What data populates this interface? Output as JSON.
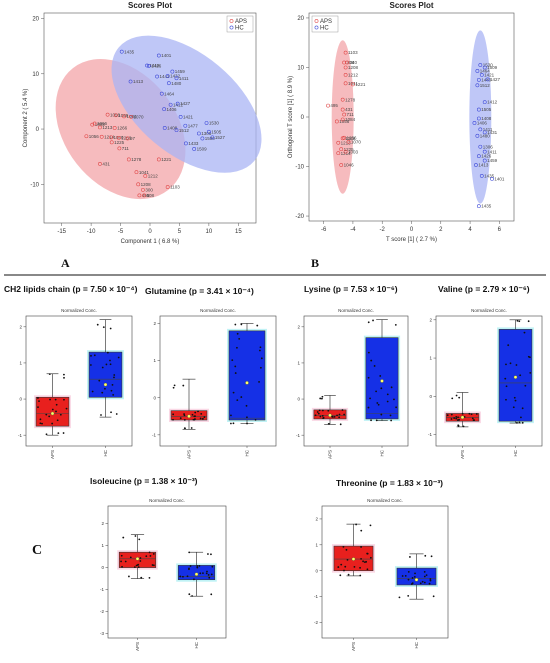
{
  "chart_data": [
    {
      "type": "scatter",
      "panel": "A",
      "title": "Scores Plot",
      "xlabel": "Component 1 ( 6.8 %)",
      "ylabel": "Component 2 ( 5.4 %)",
      "xlim": [
        -18,
        18
      ],
      "ylim": [
        -17,
        21
      ],
      "xticks": [
        -15,
        -10,
        -5,
        0,
        5,
        10,
        15
      ],
      "yticks": [
        -10,
        0,
        10,
        20
      ],
      "legend": {
        "position": "top-right",
        "entries": [
          "APS",
          "HC"
        ]
      },
      "colors": {
        "APS": "#e04848",
        "HC": "#3f4bd8",
        "APS_fill": "#f3a4a8",
        "HC_fill": "#aab4f4"
      },
      "ellipses": [
        {
          "group": "APS",
          "cx": -5,
          "cy": 0,
          "rx": 9.5,
          "ry": 14,
          "angle": 38
        },
        {
          "group": "HC",
          "cx": 6.2,
          "cy": 4.5,
          "rx": 8.5,
          "ry": 16,
          "angle": 50
        }
      ],
      "series": [
        {
          "name": "APS",
          "points": [
            {
              "x": -7.2,
              "y": 2.6,
              "label": "1056"
            },
            {
              "x": -5.8,
              "y": 2.5,
              "label": "1089"
            },
            {
              "x": -4.4,
              "y": 2.3,
              "label": "1084"
            },
            {
              "x": -3.2,
              "y": 2.2,
              "label": "1070"
            },
            {
              "x": -9.8,
              "y": 0.8,
              "label": "1003"
            },
            {
              "x": -9.4,
              "y": 1.0,
              "label": "1066"
            },
            {
              "x": -8.5,
              "y": 0.3,
              "label": "1213"
            },
            {
              "x": -6.0,
              "y": 0.2,
              "label": "1266"
            },
            {
              "x": -10.8,
              "y": -1.3,
              "label": "1056"
            },
            {
              "x": -8.2,
              "y": -1.4,
              "label": "1214"
            },
            {
              "x": -6.6,
              "y": -1.5,
              "label": "1040"
            },
            {
              "x": -5.3,
              "y": -1.6,
              "label": "1256"
            },
            {
              "x": -3.8,
              "y": -1.7,
              "label": "97"
            },
            {
              "x": -6.5,
              "y": -2.4,
              "label": "1225"
            },
            {
              "x": -5.2,
              "y": -3.5,
              "label": "711"
            },
            {
              "x": -3.6,
              "y": -5.5,
              "label": "1278"
            },
            {
              "x": -8.5,
              "y": -6.3,
              "label": "431"
            },
            {
              "x": 1.5,
              "y": -5.5,
              "label": "1221"
            },
            {
              "x": -2.3,
              "y": -7.8,
              "label": "1041"
            },
            {
              "x": -0.8,
              "y": -8.5,
              "label": "1212"
            },
            {
              "x": -2.0,
              "y": -10.0,
              "label": "1208"
            },
            {
              "x": -1.2,
              "y": -11.0,
              "label": "300"
            },
            {
              "x": -1.8,
              "y": -12.0,
              "label": "495"
            },
            {
              "x": -1.0,
              "y": -12.0,
              "label": "408"
            },
            {
              "x": 3.0,
              "y": -10.5,
              "label": "1103"
            }
          ]
        },
        {
          "name": "HC",
          "points": [
            {
              "x": -4.8,
              "y": 14.0,
              "label": "1435"
            },
            {
              "x": 1.5,
              "y": 13.3,
              "label": "1401"
            },
            {
              "x": -0.5,
              "y": 11.5,
              "label": "1418"
            },
            {
              "x": -0.2,
              "y": 11.4,
              "label": "1426"
            },
            {
              "x": 3.8,
              "y": 10.4,
              "label": "1459"
            },
            {
              "x": 1.2,
              "y": 9.5,
              "label": "1442"
            },
            {
              "x": 3.0,
              "y": 9.6,
              "label": "1432"
            },
            {
              "x": 4.5,
              "y": 9.2,
              "label": "1411"
            },
            {
              "x": -3.3,
              "y": 8.6,
              "label": "1413"
            },
            {
              "x": 3.2,
              "y": 8.3,
              "label": "1480"
            },
            {
              "x": 2.0,
              "y": 6.4,
              "label": "1464"
            },
            {
              "x": 3.5,
              "y": 4.4,
              "label": "1412"
            },
            {
              "x": 4.7,
              "y": 4.6,
              "label": "1427"
            },
            {
              "x": 2.4,
              "y": 3.6,
              "label": "1406"
            },
            {
              "x": 5.2,
              "y": 2.2,
              "label": "1421"
            },
            {
              "x": 6.0,
              "y": 0.6,
              "label": "1477"
            },
            {
              "x": 2.5,
              "y": 0.2,
              "label": "1408"
            },
            {
              "x": 4.5,
              "y": -0.2,
              "label": "1512"
            },
            {
              "x": 9.6,
              "y": 1.1,
              "label": "1530"
            },
            {
              "x": 8.3,
              "y": -0.8,
              "label": "1306"
            },
            {
              "x": 10.0,
              "y": -0.5,
              "label": "1505"
            },
            {
              "x": 8.9,
              "y": -1.7,
              "label": "1500"
            },
            {
              "x": 10.6,
              "y": -1.5,
              "label": "1527"
            },
            {
              "x": 6.1,
              "y": -2.6,
              "label": "1433"
            },
            {
              "x": 7.5,
              "y": -3.6,
              "label": "1509"
            }
          ]
        }
      ]
    },
    {
      "type": "scatter",
      "panel": "B",
      "title": "Scores Plot",
      "xlabel": "T score [1] ( 2.7 %)",
      "ylabel": "Orthogonal T score [1] ( 8.9 %)",
      "xlim": [
        -7,
        7
      ],
      "ylim": [
        -21,
        21
      ],
      "xticks": [
        -6,
        -4,
        -2,
        0,
        2,
        4,
        6
      ],
      "yticks": [
        -20,
        -10,
        0,
        10,
        20
      ],
      "legend": {
        "position": "top-left",
        "entries": [
          "APS",
          "HC"
        ]
      },
      "colors": {
        "APS": "#e04848",
        "HC": "#3f4bd8",
        "APS_fill": "#f3a4a8",
        "HC_fill": "#aab4f4"
      },
      "ellipses": [
        {
          "group": "APS",
          "cx": -4.7,
          "cy": 0,
          "rx": 0.75,
          "ry": 15.5,
          "angle": 0
        },
        {
          "group": "HC",
          "cx": 4.7,
          "cy": 0,
          "rx": 0.75,
          "ry": 17.5,
          "angle": 0
        }
      ],
      "series": [
        {
          "name": "APS",
          "points": [
            {
              "x": -4.5,
              "y": 13.0,
              "label": "1103"
            },
            {
              "x": -4.6,
              "y": 11.0,
              "label": "308"
            },
            {
              "x": -4.4,
              "y": 11.0,
              "label": "340"
            },
            {
              "x": -4.5,
              "y": 10.0,
              "label": "1208"
            },
            {
              "x": -4.5,
              "y": 8.5,
              "label": "1212"
            },
            {
              "x": -4.5,
              "y": 6.8,
              "label": "1041"
            },
            {
              "x": -4.0,
              "y": 6.6,
              "label": "1221"
            },
            {
              "x": -4.7,
              "y": 3.5,
              "label": "1278"
            },
            {
              "x": -5.7,
              "y": 2.3,
              "label": "495"
            },
            {
              "x": -4.7,
              "y": 1.5,
              "label": "431"
            },
            {
              "x": -4.6,
              "y": 0.5,
              "label": "711"
            },
            {
              "x": -5.1,
              "y": -0.9,
              "label": "1056"
            },
            {
              "x": -4.7,
              "y": -0.5,
              "label": "1084"
            },
            {
              "x": -4.6,
              "y": -4.2,
              "label": "1256"
            },
            {
              "x": -4.7,
              "y": -4.3,
              "label": "1089"
            },
            {
              "x": -5.0,
              "y": -5.2,
              "label": "1213"
            },
            {
              "x": -4.3,
              "y": -5.0,
              "label": "1070"
            },
            {
              "x": -4.8,
              "y": -6.5,
              "label": "1225"
            },
            {
              "x": -5.0,
              "y": -7.3,
              "label": "1214"
            },
            {
              "x": -4.5,
              "y": -7.0,
              "label": "1003"
            },
            {
              "x": -4.8,
              "y": -9.7,
              "label": "1046"
            }
          ]
        },
        {
          "name": "HC",
          "points": [
            {
              "x": 4.7,
              "y": 10.5,
              "label": "1530"
            },
            {
              "x": 5.0,
              "y": 10.0,
              "label": "1509"
            },
            {
              "x": 4.5,
              "y": 9.3,
              "label": "1464"
            },
            {
              "x": 4.8,
              "y": 8.5,
              "label": "1421"
            },
            {
              "x": 4.6,
              "y": 7.5,
              "label": "1440"
            },
            {
              "x": 5.2,
              "y": 7.6,
              "label": "1427"
            },
            {
              "x": 4.5,
              "y": 6.4,
              "label": "1512"
            },
            {
              "x": 5.0,
              "y": 3.0,
              "label": "1412"
            },
            {
              "x": 4.6,
              "y": 1.5,
              "label": "1505"
            },
            {
              "x": 4.6,
              "y": -0.3,
              "label": "1408"
            },
            {
              "x": 4.3,
              "y": -1.2,
              "label": "1406"
            },
            {
              "x": 4.7,
              "y": -2.5,
              "label": "1411"
            },
            {
              "x": 5.0,
              "y": -3.1,
              "label": "1431"
            },
            {
              "x": 4.5,
              "y": -3.8,
              "label": "1480"
            },
            {
              "x": 4.7,
              "y": -6.0,
              "label": "1306"
            },
            {
              "x": 5.0,
              "y": -7.0,
              "label": "1411"
            },
            {
              "x": 4.6,
              "y": -7.9,
              "label": "1426"
            },
            {
              "x": 5.0,
              "y": -8.8,
              "label": "1459"
            },
            {
              "x": 4.4,
              "y": -9.7,
              "label": "1413"
            },
            {
              "x": 4.8,
              "y": -11.9,
              "label": "1435"
            },
            {
              "x": 5.5,
              "y": -12.5,
              "label": "1401"
            },
            {
              "x": 4.6,
              "y": -18.0,
              "label": "1435"
            }
          ]
        }
      ]
    },
    {
      "type": "box",
      "panel": "C",
      "title": "CH2 lipids chain (p = 7.50 × 10⁻⁴)",
      "subtitle": "Normalized Conc.",
      "categories": [
        "APS",
        "HC"
      ],
      "yticks": [
        -1,
        0,
        1,
        2
      ],
      "ylim": [
        -1.3,
        2.3
      ],
      "boxes": [
        {
          "group": "APS",
          "min": -1.0,
          "q1": -0.75,
          "median": -0.4,
          "q3": 0.05,
          "max": 0.7,
          "mean": -0.4
        },
        {
          "group": "HC",
          "min": -0.5,
          "q1": 0.05,
          "median": 0.55,
          "q3": 1.3,
          "max": 2.2,
          "mean": 0.4
        }
      ]
    },
    {
      "type": "box",
      "panel": "C",
      "title": "Glutamine (p = 3.41 × 10⁻⁴)",
      "subtitle": "Normalized Conc.",
      "categories": [
        "APS",
        "HC"
      ],
      "yticks": [
        -1,
        0,
        1,
        2
      ],
      "ylim": [
        -1.3,
        2.2
      ],
      "boxes": [
        {
          "group": "APS",
          "min": -0.85,
          "q1": -0.6,
          "median": -0.5,
          "q3": -0.35,
          "max": 0.5,
          "mean": -0.5
        },
        {
          "group": "HC",
          "min": -0.7,
          "q1": -0.6,
          "median": -0.55,
          "q3": 1.8,
          "max": 2.0,
          "mean": 0.4
        }
      ]
    },
    {
      "type": "box",
      "panel": "C",
      "title": "Lysine (p = 7.53 × 10⁻⁶)",
      "subtitle": "Normalized Conc.",
      "categories": [
        "APS",
        "HC"
      ],
      "yticks": [
        -1,
        0,
        1,
        2
      ],
      "ylim": [
        -1.3,
        2.3
      ],
      "boxes": [
        {
          "group": "APS",
          "min": -0.7,
          "q1": -0.55,
          "median": -0.45,
          "q3": -0.3,
          "max": 0.1,
          "mean": -0.45
        },
        {
          "group": "HC",
          "min": -0.6,
          "q1": -0.55,
          "median": -0.4,
          "q3": 1.7,
          "max": 2.2,
          "mean": 0.5
        }
      ]
    },
    {
      "type": "box",
      "panel": "C",
      "title": "Valine (p = 2.79 × 10⁻⁶)",
      "subtitle": "Normalized Conc.",
      "categories": [
        "APS",
        "HC"
      ],
      "yticks": [
        -1,
        0,
        1,
        2
      ],
      "ylim": [
        -1.3,
        2.1
      ],
      "boxes": [
        {
          "group": "APS",
          "min": -0.8,
          "q1": -0.65,
          "median": -0.55,
          "q3": -0.45,
          "max": 0.1,
          "mean": -0.55
        },
        {
          "group": "HC",
          "min": -0.7,
          "q1": -0.65,
          "median": 0.35,
          "q3": 1.75,
          "max": 2.0,
          "mean": 0.5
        }
      ]
    },
    {
      "type": "box",
      "panel": "C",
      "title": "Isoleucine (p = 1.38 × 10⁻³)",
      "subtitle": "Normalized Conc.",
      "categories": [
        "APS",
        "HC"
      ],
      "yticks": [
        -3,
        -2,
        -1,
        0,
        1,
        2
      ],
      "ylim": [
        -3.2,
        2.8
      ],
      "boxes": [
        {
          "group": "APS",
          "min": -0.5,
          "q1": 0.0,
          "median": 0.4,
          "q3": 0.7,
          "max": 1.5,
          "mean": 0.4
        },
        {
          "group": "HC",
          "min": -1.3,
          "q1": -0.55,
          "median": -0.4,
          "q3": 0.1,
          "max": 0.7,
          "mean": -0.3
        }
      ]
    },
    {
      "type": "box",
      "panel": "C",
      "title": "Threonine (p = 1.83 × 10⁻³)",
      "subtitle": "Normalized Conc.",
      "categories": [
        "APS",
        "HC"
      ],
      "yticks": [
        -2,
        -1,
        0,
        1,
        2
      ],
      "ylim": [
        -2.6,
        2.5
      ],
      "boxes": [
        {
          "group": "APS",
          "min": -0.2,
          "q1": 0.0,
          "median": 0.45,
          "q3": 0.95,
          "max": 1.8,
          "mean": 0.45
        },
        {
          "group": "HC",
          "min": -1.1,
          "q1": -0.55,
          "median": -0.3,
          "q3": 0.1,
          "max": 0.65,
          "mean": -0.35
        }
      ]
    }
  ],
  "panel_labels": {
    "a": "A",
    "b": "B",
    "c": "C"
  }
}
